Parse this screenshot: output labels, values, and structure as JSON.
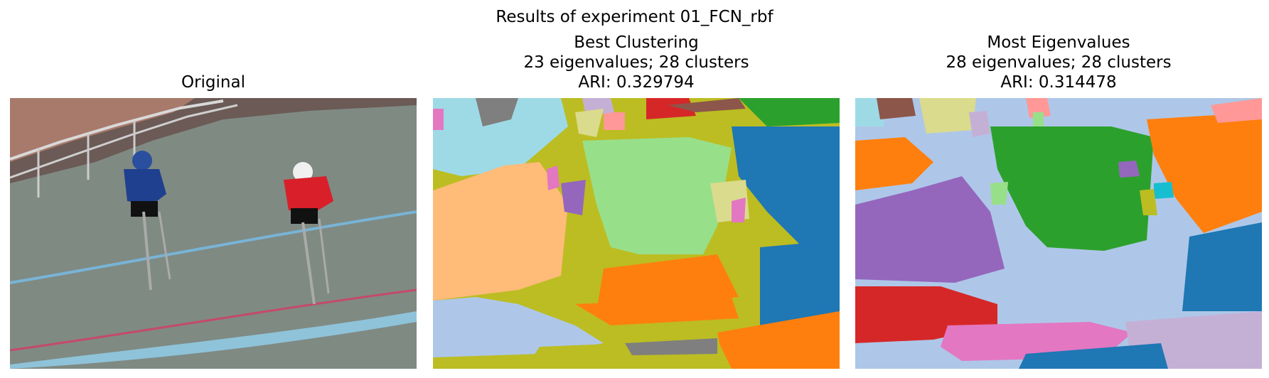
{
  "figure": {
    "suptitle": "Results of experiment 01_FCN_rbf",
    "panels": [
      {
        "id": "original",
        "title_lines": [
          "Original"
        ]
      },
      {
        "id": "best",
        "title_lines": [
          "Best Clustering",
          "23 eigenvalues; 28 clusters",
          "ARI: 0.329794"
        ]
      },
      {
        "id": "most",
        "title_lines": [
          "Most Eigenvalues",
          "28 eigenvalues; 28 clusters",
          "ARI: 0.314478"
        ]
      }
    ]
  },
  "colors": {
    "photo_track": "#7f8a83",
    "photo_crowd": "#6b5a55",
    "cyclist_left_jersey": "#1f3f8f",
    "cyclist_right_jersey": "#d81f2a",
    "tab_blue": "#1f77b4",
    "tab_orange": "#ff7f0e",
    "tab_green": "#2ca02c",
    "tab_red": "#d62728",
    "tab_purple": "#9467bd",
    "tab_brown": "#8c564b",
    "tab_pink": "#e377c2",
    "tab_gray": "#7f7f7f",
    "tab_olive": "#bcbd22",
    "tab_cyan": "#17becf",
    "light_blue": "#aec7e8",
    "light_orange": "#ffbb78",
    "light_green": "#98df8a",
    "light_red": "#ff9896",
    "light_purple": "#c5b0d5",
    "light_olive": "#dbdb8d",
    "light_cyan": "#9edae5"
  }
}
